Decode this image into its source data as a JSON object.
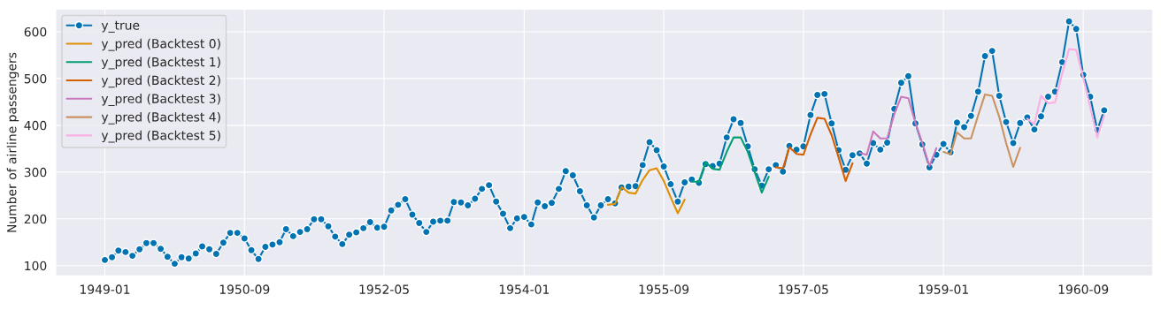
{
  "chart_data": {
    "type": "line",
    "ylabel": "Number of airline passengers",
    "xlim": [
      "1948-06",
      "1961-07"
    ],
    "ylim": [
      78,
      648
    ],
    "xticks": [
      "1949-01",
      "1950-09",
      "1952-05",
      "1954-01",
      "1955-09",
      "1957-05",
      "1959-01",
      "1960-09"
    ],
    "yticks": [
      100,
      200,
      300,
      400,
      500,
      600
    ],
    "grid": true,
    "legend": "top left",
    "line_style": "solid",
    "series": [
      {
        "name": "y_true",
        "color": "#0173b2",
        "marker": "circle",
        "x": [
          "1949-01",
          "1949-02",
          "1949-03",
          "1949-04",
          "1949-05",
          "1949-06",
          "1949-07",
          "1949-08",
          "1949-09",
          "1949-10",
          "1949-11",
          "1949-12",
          "1950-01",
          "1950-02",
          "1950-03",
          "1950-04",
          "1950-05",
          "1950-06",
          "1950-07",
          "1950-08",
          "1950-09",
          "1950-10",
          "1950-11",
          "1950-12",
          "1951-01",
          "1951-02",
          "1951-03",
          "1951-04",
          "1951-05",
          "1951-06",
          "1951-07",
          "1951-08",
          "1951-09",
          "1951-10",
          "1951-11",
          "1951-12",
          "1952-01",
          "1952-02",
          "1952-03",
          "1952-04",
          "1952-05",
          "1952-06",
          "1952-07",
          "1952-08",
          "1952-09",
          "1952-10",
          "1952-11",
          "1952-12",
          "1953-01",
          "1953-02",
          "1953-03",
          "1953-04",
          "1953-05",
          "1953-06",
          "1953-07",
          "1953-08",
          "1953-09",
          "1953-10",
          "1953-11",
          "1953-12",
          "1954-01",
          "1954-02",
          "1954-03",
          "1954-04",
          "1954-05",
          "1954-06",
          "1954-07",
          "1954-08",
          "1954-09",
          "1954-10",
          "1954-11",
          "1954-12",
          "1955-01",
          "1955-02",
          "1955-03",
          "1955-04",
          "1955-05",
          "1955-06",
          "1955-07",
          "1955-08",
          "1955-09",
          "1955-10",
          "1955-11",
          "1955-12",
          "1956-01",
          "1956-02",
          "1956-03",
          "1956-04",
          "1956-05",
          "1956-06",
          "1956-07",
          "1956-08",
          "1956-09",
          "1956-10",
          "1956-11",
          "1956-12",
          "1957-01",
          "1957-02",
          "1957-03",
          "1957-04",
          "1957-05",
          "1957-06",
          "1957-07",
          "1957-08",
          "1957-09",
          "1957-10",
          "1957-11",
          "1957-12",
          "1958-01",
          "1958-02",
          "1958-03",
          "1958-04",
          "1958-05",
          "1958-06",
          "1958-07",
          "1958-08",
          "1958-09",
          "1958-10",
          "1958-11",
          "1958-12",
          "1959-01",
          "1959-02",
          "1959-03",
          "1959-04",
          "1959-05",
          "1959-06",
          "1959-07",
          "1959-08",
          "1959-09",
          "1959-10",
          "1959-11",
          "1959-12",
          "1960-01",
          "1960-02",
          "1960-03",
          "1960-04",
          "1960-05",
          "1960-06",
          "1960-07",
          "1960-08",
          "1960-09",
          "1960-10",
          "1960-11",
          "1960-12"
        ],
        "values": [
          112,
          118,
          132,
          129,
          121,
          135,
          148,
          148,
          136,
          119,
          104,
          118,
          115,
          126,
          141,
          135,
          125,
          149,
          170,
          170,
          158,
          133,
          114,
          140,
          145,
          150,
          178,
          163,
          172,
          178,
          199,
          199,
          184,
          162,
          146,
          166,
          171,
          180,
          193,
          181,
          183,
          218,
          230,
          242,
          209,
          191,
          172,
          194,
          196,
          196,
          236,
          235,
          229,
          243,
          264,
          272,
          237,
          211,
          180,
          201,
          204,
          188,
          235,
          227,
          234,
          264,
          302,
          293,
          259,
          229,
          203,
          229,
          242,
          233,
          267,
          269,
          270,
          315,
          364,
          347,
          312,
          274,
          237,
          278,
          284,
          277,
          317,
          313,
          318,
          374,
          413,
          405,
          355,
          306,
          271,
          306,
          315,
          301,
          356,
          348,
          355,
          422,
          465,
          467,
          404,
          347,
          305,
          336,
          340,
          318,
          362,
          348,
          363,
          435,
          491,
          505,
          404,
          359,
          310,
          337,
          360,
          342,
          406,
          396,
          420,
          472,
          548,
          559,
          463,
          407,
          362,
          405,
          417,
          391,
          419,
          461,
          472,
          535,
          622,
          606,
          508,
          461,
          390,
          432
        ]
      },
      {
        "name": "y_pred (Backtest 0)",
        "color": "#de8f05",
        "x": [
          "1955-01",
          "1955-02",
          "1955-03",
          "1955-04",
          "1955-05",
          "1955-06",
          "1955-07",
          "1955-08",
          "1955-09",
          "1955-10",
          "1955-11",
          "1955-12"
        ],
        "values": [
          230,
          232,
          268,
          256,
          254,
          283,
          304,
          308,
          281,
          246,
          212,
          241
        ]
      },
      {
        "name": "y_pred (Backtest 1)",
        "color": "#029e73",
        "x": [
          "1956-01",
          "1956-02",
          "1956-03",
          "1956-04",
          "1956-05",
          "1956-06",
          "1956-07",
          "1956-08",
          "1956-09",
          "1956-10",
          "1956-11",
          "1956-12"
        ],
        "values": [
          280,
          279,
          321,
          307,
          305,
          343,
          374,
          374,
          343,
          300,
          256,
          290
        ]
      },
      {
        "name": "y_pred (Backtest 2)",
        "color": "#d55e00",
        "x": [
          "1957-01",
          "1957-02",
          "1957-03",
          "1957-04",
          "1957-05",
          "1957-06",
          "1957-07",
          "1957-08",
          "1957-09",
          "1957-10",
          "1957-11",
          "1957-12"
        ],
        "values": [
          310,
          308,
          353,
          339,
          337,
          380,
          416,
          414,
          379,
          332,
          281,
          319
        ]
      },
      {
        "name": "y_pred (Backtest 3)",
        "color": "#cc78bc",
        "x": [
          "1958-01",
          "1958-02",
          "1958-03",
          "1958-04",
          "1958-05",
          "1958-06",
          "1958-07",
          "1958-08",
          "1958-09",
          "1958-10",
          "1958-11",
          "1958-12"
        ],
        "values": [
          341,
          337,
          387,
          372,
          372,
          424,
          461,
          458,
          405,
          362,
          313,
          351
        ]
      },
      {
        "name": "y_pred (Backtest 4)",
        "color": "#ca9161",
        "x": [
          "1959-01",
          "1959-02",
          "1959-03",
          "1959-04",
          "1959-05",
          "1959-06",
          "1959-07",
          "1959-08",
          "1959-09",
          "1959-10",
          "1959-11",
          "1959-12"
        ],
        "values": [
          343,
          338,
          385,
          372,
          372,
          421,
          466,
          463,
          418,
          362,
          311,
          352
        ]
      },
      {
        "name": "y_pred (Backtest 5)",
        "color": "#fbafe4",
        "x": [
          "1960-01",
          "1960-02",
          "1960-03",
          "1960-04",
          "1960-05",
          "1960-06",
          "1960-07",
          "1960-08",
          "1960-09",
          "1960-10",
          "1960-11",
          "1960-12"
        ],
        "values": [
          414,
          402,
          463,
          447,
          449,
          510,
          563,
          561,
          501,
          439,
          374,
          421
        ]
      }
    ]
  }
}
